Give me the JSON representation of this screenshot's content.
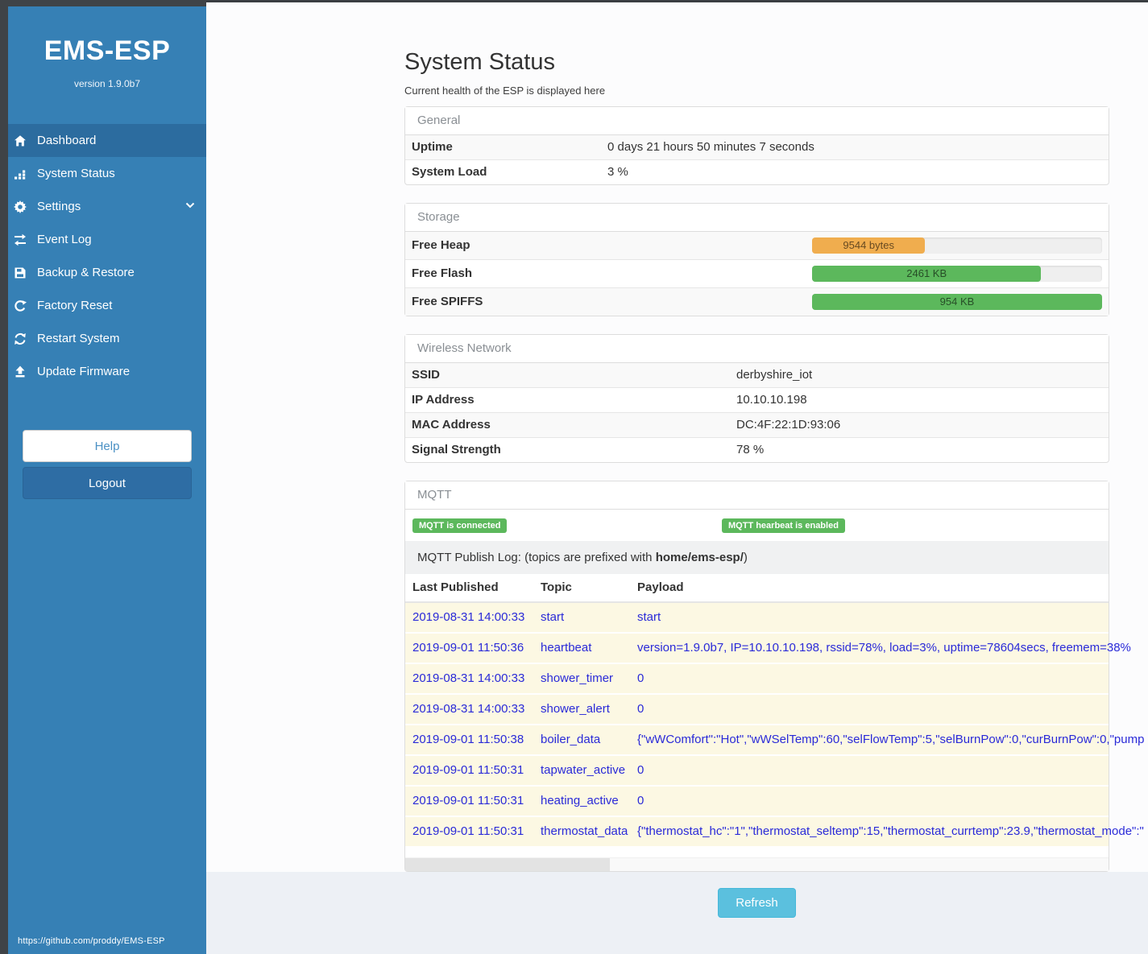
{
  "sidebar": {
    "title": "EMS-ESP",
    "version": "version 1.9.0b7",
    "items": [
      {
        "label": "Dashboard",
        "icon": "home-icon",
        "active": true
      },
      {
        "label": "System Status",
        "icon": "bar-chart-icon",
        "active": false
      },
      {
        "label": "Settings",
        "icon": "gear-icon",
        "active": false,
        "has_chevron": true
      },
      {
        "label": "Event Log",
        "icon": "exchange-icon",
        "active": false
      },
      {
        "label": "Backup & Restore",
        "icon": "save-icon",
        "active": false
      },
      {
        "label": "Factory Reset",
        "icon": "rotate-icon",
        "active": false
      },
      {
        "label": "Restart System",
        "icon": "refresh-icon",
        "active": false
      },
      {
        "label": "Update Firmware",
        "icon": "upload-icon",
        "active": false
      }
    ],
    "help_label": "Help",
    "logout_label": "Logout",
    "footer_link": "https://github.com/proddy/EMS-ESP"
  },
  "page": {
    "title": "System Status",
    "subtitle": "Current health of the ESP is displayed here",
    "refresh_label": "Refresh"
  },
  "general": {
    "heading": "General",
    "rows": [
      {
        "label": "Uptime",
        "value": "0 days 21 hours 50 minutes 7 seconds"
      },
      {
        "label": "System Load",
        "value": "3 %"
      }
    ]
  },
  "storage": {
    "heading": "Storage",
    "rows": [
      {
        "label": "Free Heap",
        "value": "9544 bytes",
        "pct": "39%",
        "color": "#f0ad4e"
      },
      {
        "label": "Free Flash",
        "value": "2461 KB",
        "pct": "79%",
        "color": "#5cb85c"
      },
      {
        "label": "Free SPIFFS",
        "value": "954 KB",
        "pct": "100%",
        "color": "#5cb85c"
      }
    ]
  },
  "wireless": {
    "heading": "Wireless Network",
    "rows": [
      {
        "label": "SSID",
        "value": "derbyshire_iot"
      },
      {
        "label": "IP Address",
        "value": "10.10.10.198"
      },
      {
        "label": "MAC Address",
        "value": "DC:4F:22:1D:93:06"
      },
      {
        "label": "Signal Strength",
        "value": "78 %"
      }
    ]
  },
  "mqtt": {
    "heading": "MQTT",
    "badges": [
      {
        "label": "MQTT is connected"
      },
      {
        "label": "MQTT hearbeat is enabled"
      }
    ],
    "log_title_prefix": "MQTT Publish Log: (topics are prefixed with ",
    "log_title_bold": "home/ems-esp/",
    "log_title_suffix": ")",
    "columns": [
      "Last Published",
      "Topic",
      "Payload"
    ],
    "log": [
      {
        "time": "2019-08-31 14:00:33",
        "topic": "start",
        "payload": "start"
      },
      {
        "time": "2019-09-01 11:50:36",
        "topic": "heartbeat",
        "payload": "version=1.9.0b7, IP=10.10.10.198, rssid=78%, load=3%, uptime=78604secs, freemem=38%"
      },
      {
        "time": "2019-08-31 14:00:33",
        "topic": "shower_timer",
        "payload": "0"
      },
      {
        "time": "2019-08-31 14:00:33",
        "topic": "shower_alert",
        "payload": "0"
      },
      {
        "time": "2019-09-01 11:50:38",
        "topic": "boiler_data",
        "payload": "{\"wWComfort\":\"Hot\",\"wWSelTemp\":60,\"selFlowTemp\":5,\"selBurnPow\":0,\"curBurnPow\":0,\"pump"
      },
      {
        "time": "2019-09-01 11:50:31",
        "topic": "tapwater_active",
        "payload": "0"
      },
      {
        "time": "2019-09-01 11:50:31",
        "topic": "heating_active",
        "payload": "0"
      },
      {
        "time": "2019-09-01 11:50:31",
        "topic": "thermostat_data",
        "payload": "{\"thermostat_hc\":\"1\",\"thermostat_seltemp\":15,\"thermostat_currtemp\":23.9,\"thermostat_mode\":\""
      }
    ]
  },
  "colors": {
    "sidebar_blue": "#3680b5",
    "sidebar_active_blue": "#2c6c9f",
    "dark_frame": "#3f4347",
    "success_green": "#5cb85c",
    "warning_orange": "#f0ad4e",
    "info_blue": "#5bc0de",
    "log_link_blue": "#2a2ad8",
    "log_row_cream": "#fcf8e3",
    "footer_bg": "#edf0f5"
  }
}
